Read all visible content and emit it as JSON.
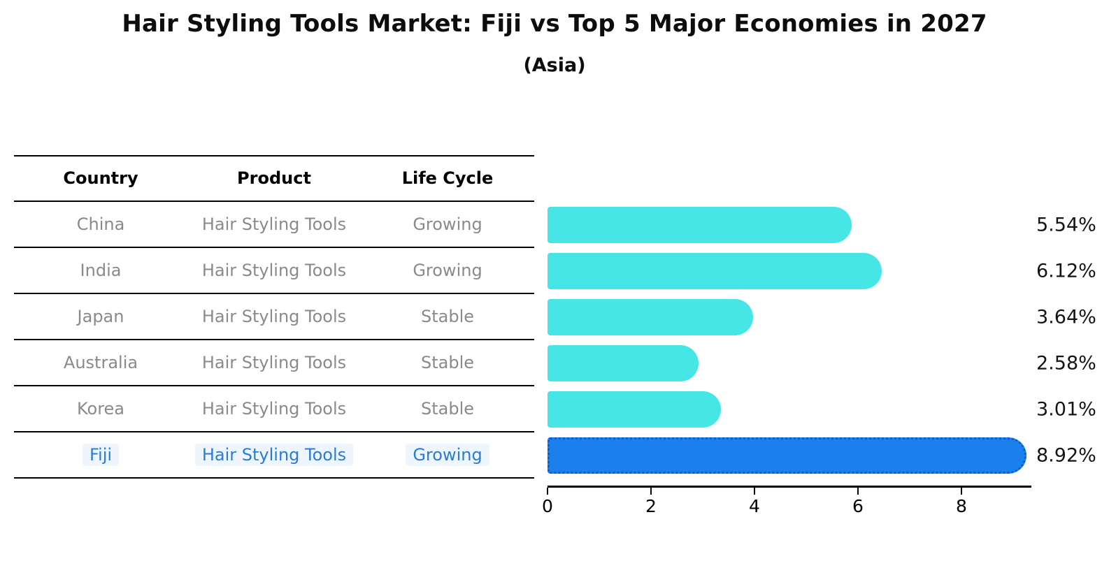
{
  "title": "Hair Styling Tools Market: Fiji vs Top 5 Major Economies in 2027",
  "subtitle": "(Asia)",
  "colors": {
    "bar_default": "#47e6e6",
    "bar_highlight": "#1b80ec",
    "bar_highlight_border": "#0d5bd0",
    "row_text": "#8a8a8a",
    "highlight_text": "#2b7cd6",
    "axis": "#000000",
    "value_label": "#141414"
  },
  "table": {
    "headers": [
      "Country",
      "Product",
      "Life Cycle"
    ],
    "rows": [
      {
        "country": "China",
        "product": "Hair Styling Tools",
        "life_cycle": "Growing",
        "highlight": false
      },
      {
        "country": "India",
        "product": "Hair Styling Tools",
        "life_cycle": "Growing",
        "highlight": false
      },
      {
        "country": "Japan",
        "product": "Hair Styling Tools",
        "life_cycle": "Stable",
        "highlight": false
      },
      {
        "country": "Australia",
        "product": "Hair Styling Tools",
        "life_cycle": "Stable",
        "highlight": false
      },
      {
        "country": "Korea",
        "product": "Hair Styling Tools",
        "life_cycle": "Stable",
        "highlight": false
      },
      {
        "country": "Fiji",
        "product": "Hair Styling Tools",
        "life_cycle": "Growing",
        "highlight": true
      }
    ]
  },
  "chart_data": {
    "type": "bar",
    "orientation": "horizontal",
    "title": "Hair Styling Tools Market: Fiji vs Top 5 Major Economies in 2027",
    "subtitle": "(Asia)",
    "categories": [
      "China",
      "India",
      "Japan",
      "Australia",
      "Korea",
      "Fiji"
    ],
    "values": [
      5.54,
      6.12,
      3.64,
      2.58,
      3.01,
      8.92
    ],
    "value_labels": [
      "5.54%",
      "6.12%",
      "3.64%",
      "2.58%",
      "3.01%",
      "8.92%"
    ],
    "highlight_index": 5,
    "xlabel": "",
    "ylabel": "",
    "xlim": [
      0,
      9.35
    ],
    "xticks": [
      0,
      2,
      4,
      6,
      8
    ],
    "grid": false,
    "legend": false
  }
}
